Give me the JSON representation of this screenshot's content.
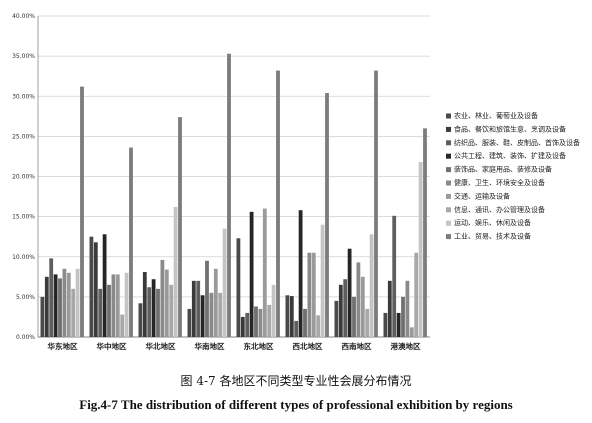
{
  "chart_data": {
    "type": "bar",
    "categories": [
      "华东地区",
      "华中地区",
      "华北地区",
      "华南地区",
      "东北地区",
      "西北地区",
      "西南地区",
      "港澳地区"
    ],
    "yticks": [
      "0.00%",
      "5.00%",
      "10.00%",
      "15.00%",
      "20.00%",
      "25.00%",
      "30.00%",
      "35.00%",
      "40.00%"
    ],
    "ylim": [
      0,
      40
    ],
    "unit": "%",
    "grid": true,
    "legend_position": "right",
    "series": [
      {
        "name": "农业、林业、葡萄业及设备",
        "color": "#4a4a4a",
        "values": [
          5.0,
          12.5,
          4.2,
          3.5,
          12.3,
          5.2,
          4.5,
          3.0
        ]
      },
      {
        "name": "食品、餐饮和旅馆生意、烹调及设备",
        "color": "#3a3a3a",
        "values": [
          7.5,
          11.8,
          8.1,
          7.0,
          2.5,
          5.1,
          6.5,
          7.0
        ]
      },
      {
        "name": "纺织品、服装、鞋、皮制品、首饰及设备",
        "color": "#5e5e5e",
        "values": [
          9.8,
          6.0,
          6.2,
          7.0,
          3.0,
          2.0,
          7.2,
          15.1
        ]
      },
      {
        "name": "公共工程、建筑、装饰、扩建及设备",
        "color": "#262626",
        "values": [
          7.8,
          12.8,
          7.2,
          5.2,
          15.6,
          15.8,
          11.0,
          3.0
        ]
      },
      {
        "name": "装饰品、家庭用品、装修及设备",
        "color": "#707070",
        "values": [
          7.3,
          6.5,
          6.0,
          9.5,
          3.8,
          3.5,
          5.0,
          5.0
        ]
      },
      {
        "name": "健康、卫生、环境安全及设备",
        "color": "#8a8a8a",
        "values": [
          8.5,
          7.8,
          9.6,
          5.5,
          3.5,
          10.5,
          9.3,
          7.0
        ]
      },
      {
        "name": "交通、运输及设备",
        "color": "#9a9a9a",
        "values": [
          8.0,
          7.8,
          8.4,
          8.5,
          16.0,
          10.5,
          7.5,
          1.2
        ]
      },
      {
        "name": "信息、通讯、办公管理及设备",
        "color": "#a8a8a8",
        "values": [
          6.0,
          2.8,
          6.5,
          5.5,
          4.0,
          2.7,
          3.5,
          10.5
        ]
      },
      {
        "name": "运动、娱乐、休闲及设备",
        "color": "#c4c4c4",
        "values": [
          8.5,
          8.0,
          16.2,
          13.5,
          6.5,
          14.0,
          12.8,
          21.8
        ]
      },
      {
        "name": "工业、贸易、技术及设备",
        "color": "#7c7c7c",
        "values": [
          31.2,
          23.6,
          27.4,
          35.3,
          33.2,
          30.4,
          33.2,
          26.0
        ]
      }
    ]
  },
  "captions": {
    "cn": "图 4-7  各地区不同类型专业性会展分布情况",
    "en": "Fig.4-7 The distribution of different types of professional exhibition by regions"
  }
}
